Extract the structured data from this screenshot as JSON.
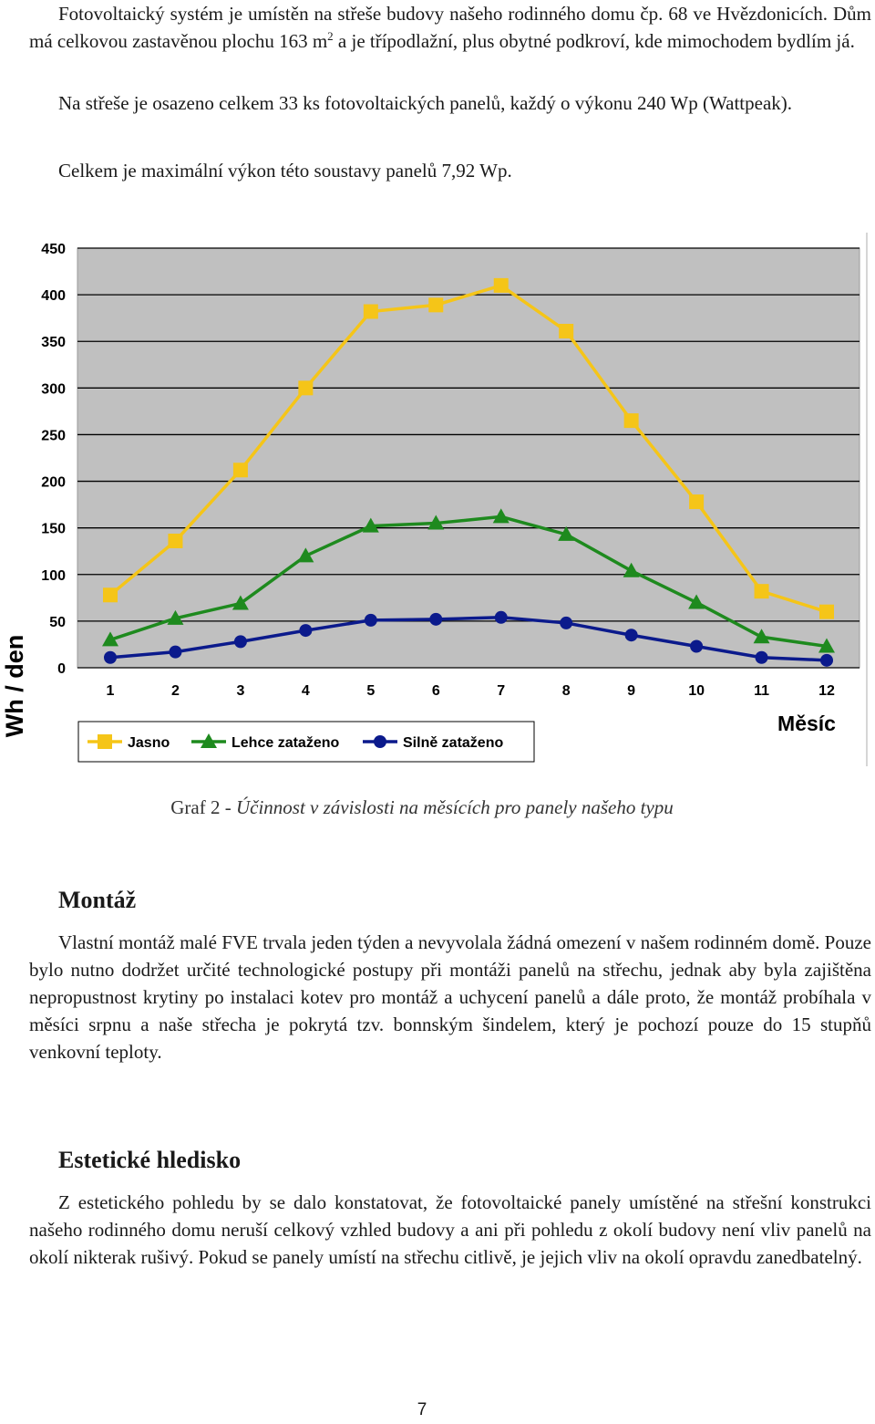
{
  "intro": {
    "p1_a": "Fotovoltaický systém je umístěn na střeše budovy našeho rodinného domu čp. 68 ve Hvězdonicích. Dům má celkovou zastavěnou plochu 163 m",
    "p1_sup": "2",
    "p1_b": " a je třípodlažní, plus obytné podkroví, kde mimochodem bydlím já.",
    "p2": "Na střeše je osazeno celkem 33 ks fotovoltaických panelů, každý o výkonu 240 Wp (Wattpeak).",
    "p3": "Celkem je maximální výkon této soustavy panelů 7,92 Wp."
  },
  "chart_data": {
    "type": "line",
    "title": "",
    "xlabel": "Měsíc",
    "ylabel": "Wh / den",
    "x": [
      1,
      2,
      3,
      4,
      5,
      6,
      7,
      8,
      9,
      10,
      11,
      12
    ],
    "xticks": [
      "1",
      "2",
      "3",
      "4",
      "5",
      "6",
      "7",
      "8",
      "9",
      "10",
      "11",
      "12"
    ],
    "yticks": [
      "0",
      "50",
      "100",
      "150",
      "200",
      "250",
      "300",
      "350",
      "400",
      "450"
    ],
    "ylim": [
      0,
      450
    ],
    "grid": "horizontal",
    "legend_position": "bottom",
    "series": [
      {
        "name": "Jasno",
        "color": "#f5c518",
        "marker": "square",
        "values": [
          78,
          136,
          212,
          300,
          382,
          389,
          410,
          361,
          265,
          178,
          82,
          60
        ]
      },
      {
        "name": "Lehce zataženo",
        "color": "#1e8a1e",
        "marker": "triangle",
        "values": [
          30,
          53,
          69,
          120,
          152,
          155,
          162,
          143,
          104,
          70,
          33,
          23
        ]
      },
      {
        "name": "Silně zataženo",
        "color": "#0b1a8c",
        "marker": "circle",
        "values": [
          11,
          17,
          28,
          40,
          51,
          52,
          54,
          48,
          35,
          23,
          11,
          8
        ]
      }
    ]
  },
  "caption": {
    "prefix": "Graf 2 - ",
    "text": "Účinnost v závislosti na měsících pro panely našeho typu"
  },
  "montaz": {
    "heading": "Montáž",
    "text": "Vlastní montáž malé FVE trvala jeden týden a nevyvolala žádná omezení v našem rodinném domě. Pouze bylo nutno dodržet určité technologické postupy při montáži panelů na střechu, jednak aby byla zajištěna nepropustnost krytiny po instalaci kotev pro montáž a uchycení panelů a dále proto, že montáž probíhala v měsíci srpnu a naše střecha je pokrytá tzv. bonnským šindelem, který je pochozí pouze do 15 stupňů venkovní teploty."
  },
  "estetika": {
    "heading": "Estetické hledisko",
    "text": "Z estetického pohledu by se dalo konstatovat, že fotovoltaické panely umístěné na střešní konstrukci našeho rodinného domu neruší celkový vzhled budovy a ani při pohledu z okolí budovy není vliv panelů na okolí nikterak rušivý. Pokud se panely umístí na střechu citlivě, je jejich vliv na okolí opravdu zanedbatelný."
  },
  "page_number": "7"
}
